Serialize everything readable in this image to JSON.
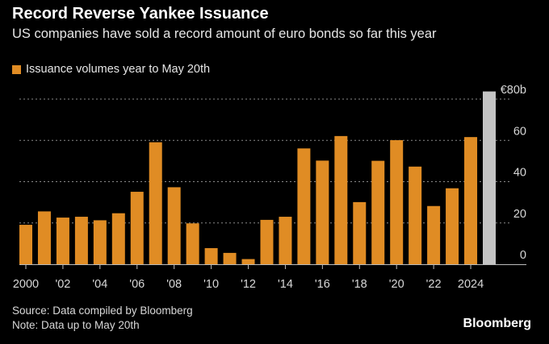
{
  "chart_data": {
    "type": "bar",
    "title": "Record Reverse Yankee Issuance",
    "subtitle": "US companies have sold a record amount of euro bonds so far this year",
    "legend": [
      {
        "label": "Issuance volumes year to May 20th",
        "color": "#e08c24"
      }
    ],
    "legend_placement": "top-left",
    "categories": [
      "2000",
      "2001",
      "2002",
      "2003",
      "2004",
      "2005",
      "2006",
      "2007",
      "2008",
      "2009",
      "2010",
      "2011",
      "2012",
      "2013",
      "2014",
      "2015",
      "2016",
      "2017",
      "2018",
      "2019",
      "2020",
      "2021",
      "2022",
      "2023",
      "2024",
      "2025"
    ],
    "values": [
      19.1,
      25.6,
      22.6,
      23.0,
      21.3,
      24.7,
      35.1,
      59.1,
      37.3,
      19.8,
      7.8,
      5.5,
      2.5,
      21.5,
      23.0,
      56.1,
      50.2,
      62.1,
      30.1,
      50.1,
      60.1,
      47.3,
      28.2,
      36.8,
      61.6,
      83.7
    ],
    "highlight_color": "#c4c4c4",
    "bar_color": "#e08c24",
    "x_tick_labels": [
      {
        "category": "2000",
        "label": "2000"
      },
      {
        "category": "2002",
        "label": "'02"
      },
      {
        "category": "2004",
        "label": "'04"
      },
      {
        "category": "2006",
        "label": "'06"
      },
      {
        "category": "2008",
        "label": "'08"
      },
      {
        "category": "2010",
        "label": "'10"
      },
      {
        "category": "2012",
        "label": "'12"
      },
      {
        "category": "2014",
        "label": "'14"
      },
      {
        "category": "2016",
        "label": "'16"
      },
      {
        "category": "2018",
        "label": "'18"
      },
      {
        "category": "2020",
        "label": "'20"
      },
      {
        "category": "2022",
        "label": "'22"
      },
      {
        "category": "2024",
        "label": "2024"
      }
    ],
    "y_ticks": [
      {
        "value": 0,
        "label": "0"
      },
      {
        "value": 20,
        "label": "20"
      },
      {
        "value": 40,
        "label": "40"
      },
      {
        "value": 60,
        "label": "60"
      },
      {
        "value": 80,
        "label": "€80b"
      }
    ],
    "ylim": [
      0,
      80
    ],
    "ylabel": "",
    "xlabel": "",
    "grid": true
  },
  "footer": {
    "source": "Source: Data compiled by Bloomberg",
    "note": "Note: Data up to May 20th",
    "brand": "Bloomberg"
  }
}
